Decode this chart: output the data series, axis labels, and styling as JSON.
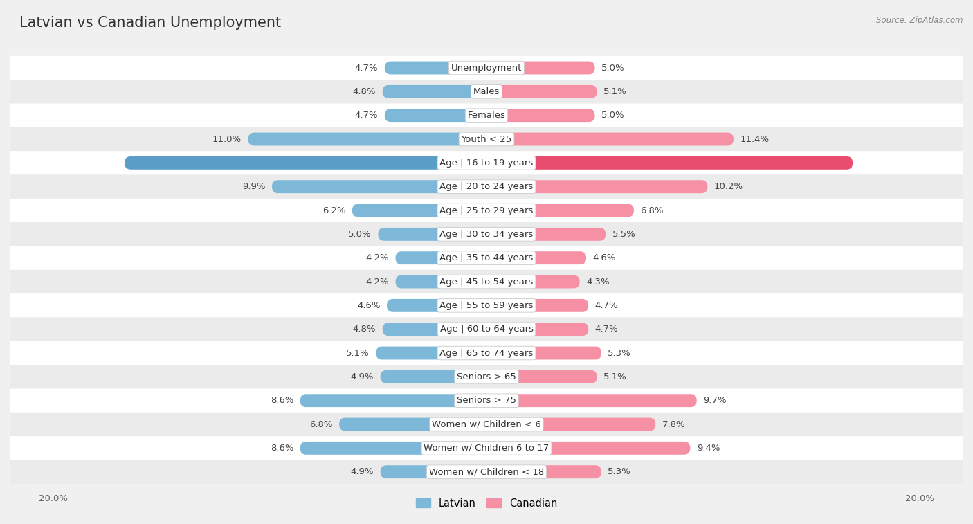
{
  "title": "Latvian vs Canadian Unemployment",
  "source": "Source: ZipAtlas.com",
  "categories": [
    "Unemployment",
    "Males",
    "Females",
    "Youth < 25",
    "Age | 16 to 19 years",
    "Age | 20 to 24 years",
    "Age | 25 to 29 years",
    "Age | 30 to 34 years",
    "Age | 35 to 44 years",
    "Age | 45 to 54 years",
    "Age | 55 to 59 years",
    "Age | 60 to 64 years",
    "Age | 65 to 74 years",
    "Seniors > 65",
    "Seniors > 75",
    "Women w/ Children < 6",
    "Women w/ Children 6 to 17",
    "Women w/ Children < 18"
  ],
  "latvian": [
    4.7,
    4.8,
    4.7,
    11.0,
    16.7,
    9.9,
    6.2,
    5.0,
    4.2,
    4.2,
    4.6,
    4.8,
    5.1,
    4.9,
    8.6,
    6.8,
    8.6,
    4.9
  ],
  "canadian": [
    5.0,
    5.1,
    5.0,
    11.4,
    16.9,
    10.2,
    6.8,
    5.5,
    4.6,
    4.3,
    4.7,
    4.7,
    5.3,
    5.1,
    9.7,
    7.8,
    9.4,
    5.3
  ],
  "latvian_color": "#7db8d8",
  "canadian_color": "#f590a5",
  "latvian_highlight_color": "#5a9ec8",
  "canadian_highlight_color": "#e84d70",
  "bg_white": "#ffffff",
  "bg_gray": "#ebebeb",
  "background_color": "#f0f0f0",
  "max_value": 20.0,
  "legend_latvian": "Latvian",
  "legend_canadian": "Canadian",
  "title_fontsize": 15,
  "label_fontsize": 9.5,
  "value_fontsize": 9.5,
  "tick_fontsize": 9.5
}
